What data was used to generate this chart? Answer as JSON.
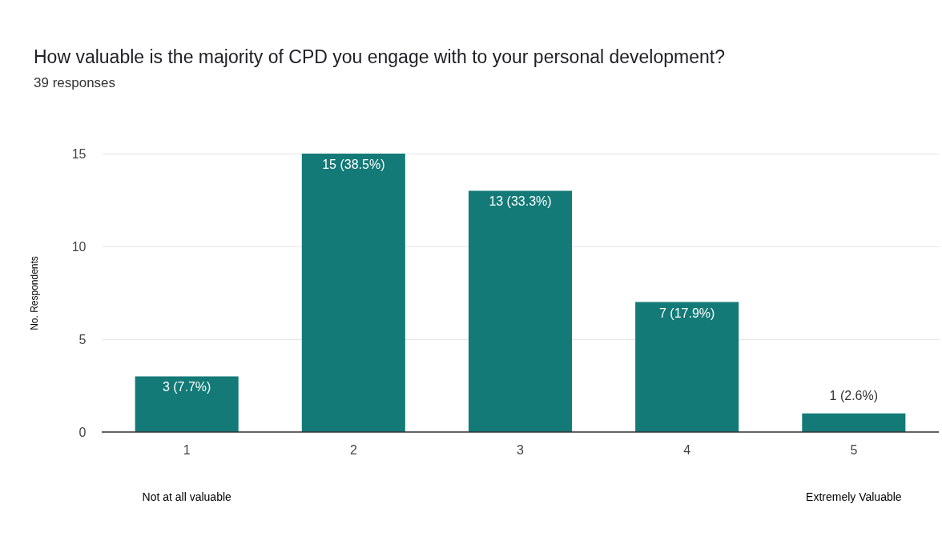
{
  "chart_data": {
    "type": "bar",
    "title": "How valuable is the majority of CPD you engage with to your personal development?",
    "subtitle": "39 responses",
    "ylabel": "No. Respondents",
    "categories": [
      "1",
      "2",
      "3",
      "4",
      "5"
    ],
    "values": [
      3,
      15,
      13,
      7,
      1
    ],
    "value_labels": [
      "3 (7.7%)",
      "15 (38.5%)",
      "13 (33.3%)",
      "7 (17.9%)",
      "1 (2.6%)"
    ],
    "color": "#137a77",
    "ylim": [
      0,
      15
    ],
    "yticks": [
      0,
      5,
      10,
      15
    ],
    "grid": "y",
    "annotations": [
      "Not at all valuable",
      "Extremely Valuable"
    ]
  }
}
